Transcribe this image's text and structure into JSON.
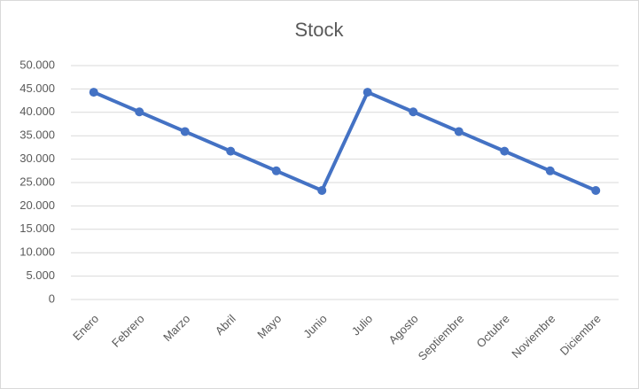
{
  "chart_data": {
    "type": "line",
    "title": "Stock",
    "categories": [
      "Enero",
      "Febrero",
      "Marzo",
      "Abril",
      "Mayo",
      "Junio",
      "Julio",
      "Agosto",
      "Septiembre",
      "Octubre",
      "Noviembre",
      "Diciembre"
    ],
    "series": [
      {
        "name": "Stock",
        "color": "#4472c4",
        "values": [
          44300,
          40100,
          35900,
          31700,
          27500,
          23300,
          44300,
          40100,
          35900,
          31700,
          27500,
          23300
        ]
      }
    ],
    "ylim": [
      0,
      50000
    ],
    "yticks": [
      0,
      {
        "value": 5000,
        "label": "5.000"
      },
      {
        "value": 10000,
        "label": "10.000"
      },
      {
        "value": 15000,
        "label": "15.000"
      },
      {
        "value": 20000,
        "label": "20.000"
      },
      {
        "value": 25000,
        "label": "25.000"
      },
      {
        "value": 30000,
        "label": "30.000"
      },
      {
        "value": 35000,
        "label": "35.000"
      },
      {
        "value": 40000,
        "label": "40.000"
      },
      {
        "value": 45000,
        "label": "45.000"
      },
      {
        "value": 50000,
        "label": "50.000"
      }
    ],
    "grid": true
  }
}
